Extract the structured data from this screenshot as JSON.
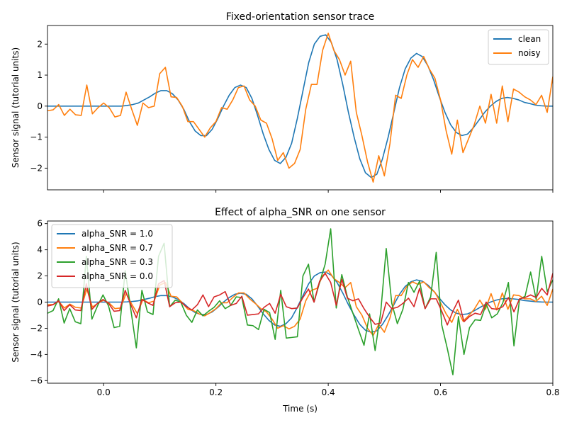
{
  "chart_data": [
    {
      "type": "line",
      "title": "Fixed-orientation sensor trace",
      "xlabel": "",
      "ylabel": "Sensor signal (tutorial units)",
      "xlim": [
        -0.1,
        0.8
      ],
      "ylim": [
        -2.7,
        2.6
      ],
      "xticks": [
        0.0,
        0.2,
        0.4,
        0.6,
        0.8
      ],
      "xticklabels": [
        "",
        "",
        "",
        "",
        ""
      ],
      "yticks": [
        -2,
        -1,
        0,
        1,
        2
      ],
      "yticklabels": [
        "−2",
        "−1",
        "0",
        "1",
        "2"
      ],
      "legend": "top-right",
      "grid": false,
      "series": [
        {
          "name": "clean",
          "color": "#1f77b4",
          "values": [
            0.0,
            0.0,
            0.0,
            0.0,
            0.0,
            0.0,
            0.0,
            0.0,
            0.0,
            0.0,
            0.0,
            0.0,
            0.0,
            0.0,
            0.02,
            0.05,
            0.1,
            0.2,
            0.3,
            0.42,
            0.5,
            0.5,
            0.4,
            0.2,
            -0.1,
            -0.5,
            -0.8,
            -0.95,
            -0.95,
            -0.75,
            -0.4,
            0.0,
            0.35,
            0.6,
            0.68,
            0.6,
            0.25,
            -0.3,
            -0.9,
            -1.4,
            -1.75,
            -1.85,
            -1.65,
            -1.2,
            -0.4,
            0.5,
            1.4,
            2.0,
            2.25,
            2.3,
            2.05,
            1.5,
            0.7,
            -0.2,
            -1.0,
            -1.7,
            -2.15,
            -2.3,
            -2.2,
            -1.7,
            -1.0,
            -0.2,
            0.6,
            1.2,
            1.55,
            1.7,
            1.6,
            1.3,
            0.85,
            0.3,
            -0.2,
            -0.6,
            -0.85,
            -0.95,
            -0.9,
            -0.7,
            -0.45,
            -0.2,
            0.0,
            0.15,
            0.25,
            0.28,
            0.25,
            0.2,
            0.12,
            0.08,
            0.03,
            0.01,
            0.0,
            0.0
          ]
        },
        {
          "name": "noisy",
          "color": "#ff7f0e",
          "values": [
            -0.15,
            -0.12,
            0.05,
            -0.3,
            -0.1,
            -0.28,
            -0.3,
            0.68,
            -0.25,
            -0.05,
            0.1,
            -0.05,
            -0.35,
            -0.3,
            0.45,
            -0.1,
            -0.62,
            0.1,
            -0.05,
            0.0,
            1.05,
            1.25,
            0.3,
            0.28,
            0.0,
            -0.5,
            -0.5,
            -0.75,
            -1.0,
            -0.7,
            -0.5,
            -0.05,
            -0.1,
            0.2,
            0.6,
            0.65,
            0.2,
            0.0,
            -0.45,
            -0.55,
            -1.05,
            -1.75,
            -1.5,
            -2.0,
            -1.85,
            -1.4,
            -0.1,
            0.7,
            0.7,
            1.8,
            2.35,
            1.8,
            1.5,
            1.0,
            1.45,
            -0.2,
            -0.95,
            -1.8,
            -2.45,
            -1.6,
            -2.25,
            -1.2,
            0.35,
            0.25,
            1.0,
            1.5,
            1.25,
            1.6,
            1.2,
            0.9,
            0.2,
            -0.8,
            -1.55,
            -0.45,
            -1.5,
            -1.05,
            -0.6,
            0.0,
            -0.55,
            0.38,
            -0.55,
            0.65,
            -0.5,
            0.55,
            0.45,
            0.3,
            0.2,
            0.05,
            0.35,
            -0.2,
            0.95
          ]
        }
      ]
    },
    {
      "type": "line",
      "title": "Effect of alpha_SNR on one sensor",
      "xlabel": "Time (s)",
      "ylabel": "Sensor signal (tutorial units)",
      "xlim": [
        -0.1,
        0.8
      ],
      "ylim": [
        -6.2,
        6.2
      ],
      "xticks": [
        0.0,
        0.2,
        0.4,
        0.6,
        0.8
      ],
      "xticklabels": [
        "0.0",
        "0.2",
        "0.4",
        "0.6",
        "0.8"
      ],
      "yticks": [
        -6,
        -4,
        -2,
        0,
        2,
        4,
        6
      ],
      "yticklabels": [
        "−6",
        "−4",
        "−2",
        "0",
        "2",
        "4",
        "6"
      ],
      "legend": "top-left",
      "grid": false,
      "series": [
        {
          "name": "alpha_SNR = 1.0",
          "color": "#1f77b4",
          "values": [
            0.0,
            0.0,
            0.0,
            0.0,
            0.0,
            0.0,
            0.0,
            0.0,
            0.0,
            0.0,
            0.0,
            0.0,
            0.0,
            0.0,
            0.02,
            0.05,
            0.1,
            0.2,
            0.3,
            0.42,
            0.5,
            0.5,
            0.4,
            0.2,
            -0.1,
            -0.5,
            -0.8,
            -0.95,
            -0.95,
            -0.75,
            -0.4,
            0.0,
            0.35,
            0.6,
            0.68,
            0.6,
            0.25,
            -0.3,
            -0.9,
            -1.4,
            -1.75,
            -1.85,
            -1.65,
            -1.2,
            -0.4,
            0.5,
            1.4,
            2.0,
            2.25,
            2.3,
            2.05,
            1.5,
            0.7,
            -0.2,
            -1.0,
            -1.7,
            -2.15,
            -2.3,
            -2.2,
            -1.7,
            -1.0,
            -0.2,
            0.6,
            1.2,
            1.55,
            1.7,
            1.6,
            1.3,
            0.85,
            0.3,
            -0.2,
            -0.6,
            -0.85,
            -0.95,
            -0.9,
            -0.7,
            -0.45,
            -0.2,
            0.0,
            0.15,
            0.25,
            0.28,
            0.25,
            0.2,
            0.12,
            0.08,
            0.03,
            0.01,
            0.0,
            0.0
          ]
        },
        {
          "name": "alpha_SNR = 0.7",
          "color": "#ff7f0e",
          "values": [
            -0.2,
            -0.18,
            0.05,
            -0.45,
            -0.15,
            -0.4,
            -0.45,
            1.0,
            -0.38,
            -0.08,
            0.15,
            -0.08,
            -0.5,
            -0.45,
            0.65,
            -0.15,
            -0.88,
            0.2,
            -0.05,
            0.08,
            1.3,
            1.5,
            0.45,
            0.4,
            -0.05,
            -0.55,
            -0.65,
            -0.9,
            -1.05,
            -0.8,
            -0.5,
            -0.05,
            -0.05,
            0.35,
            0.7,
            0.7,
            0.25,
            -0.1,
            -0.5,
            -0.75,
            -1.3,
            -2.0,
            -1.8,
            -2.05,
            -1.85,
            -1.3,
            0.1,
            0.9,
            1.05,
            2.0,
            2.45,
            1.8,
            1.5,
            1.1,
            1.5,
            -0.35,
            -1.0,
            -2.0,
            -2.55,
            -1.7,
            -2.3,
            -1.2,
            0.5,
            0.5,
            1.2,
            1.55,
            1.35,
            1.55,
            1.1,
            0.75,
            -0.05,
            -0.9,
            -1.55,
            -0.55,
            -1.45,
            -1.05,
            -0.55,
            0.15,
            -0.55,
            0.65,
            -0.6,
            0.7,
            -0.55,
            0.55,
            0.5,
            0.25,
            0.25,
            0.05,
            0.45,
            -0.25,
            1.0
          ]
        },
        {
          "name": "alpha_SNR = 0.3",
          "color": "#2ca02c",
          "values": [
            -0.85,
            -0.65,
            0.25,
            -1.6,
            -0.5,
            -1.5,
            -1.65,
            3.5,
            -1.3,
            -0.3,
            0.55,
            -0.3,
            -1.95,
            -1.85,
            2.4,
            -0.55,
            -3.5,
            0.9,
            -0.75,
            -0.95,
            3.5,
            4.5,
            -0.35,
            0.15,
            0.0,
            -1.0,
            -1.55,
            -0.6,
            -1.05,
            -0.7,
            -0.4,
            0.1,
            -0.5,
            -0.25,
            0.4,
            0.35,
            -1.75,
            -1.8,
            -2.1,
            -0.55,
            -0.8,
            -2.85,
            0.9,
            -2.75,
            -2.7,
            -2.65,
            2.0,
            2.9,
            0.0,
            1.5,
            2.9,
            5.6,
            -0.45,
            2.1,
            0.4,
            -0.85,
            -2.1,
            -3.3,
            -0.9,
            -3.7,
            -0.8,
            4.1,
            -0.1,
            -1.65,
            -0.55,
            1.5,
            0.75,
            1.6,
            -0.5,
            0.4,
            3.8,
            -1.75,
            -3.55,
            -5.55,
            -1.1,
            -4.0,
            -1.95,
            -1.35,
            -1.4,
            -0.15,
            -1.2,
            -0.9,
            -0.05,
            1.5,
            -3.35,
            0.2,
            0.45,
            2.3,
            0.2,
            3.5,
            0.8,
            1.7
          ]
        },
        {
          "name": "alpha_SNR = 0.0",
          "color": "#d62728",
          "values": [
            -0.3,
            -0.2,
            0.1,
            -0.65,
            -0.2,
            -0.6,
            -0.65,
            1.4,
            -0.55,
            -0.1,
            0.2,
            -0.1,
            -0.7,
            -0.65,
            0.9,
            -0.2,
            -1.2,
            0.2,
            -0.05,
            -0.25,
            1.4,
            1.65,
            -0.35,
            -0.05,
            0.0,
            -0.35,
            -0.6,
            -0.2,
            0.55,
            -0.35,
            0.4,
            0.55,
            0.8,
            -0.25,
            -0.1,
            0.45,
            -1.0,
            -0.95,
            -0.9,
            -0.4,
            -0.1,
            -0.85,
            0.6,
            -0.35,
            -0.5,
            -0.45,
            0.35,
            1.0,
            0.0,
            1.6,
            2.2,
            1.5,
            -0.25,
            1.75,
            0.3,
            0.1,
            0.25,
            -0.5,
            -1.15,
            -1.7,
            -1.6,
            0.0,
            -0.5,
            -0.4,
            -0.1,
            0.3,
            -0.35,
            1.05,
            -0.5,
            0.25,
            0.25,
            -0.7,
            -1.75,
            -0.7,
            0.15,
            -1.5,
            -1.1,
            -0.85,
            -0.95,
            0.0,
            -0.5,
            -0.55,
            -0.35,
            0.35,
            -0.75,
            0.25,
            0.35,
            0.55,
            0.35,
            1.05,
            0.55,
            2.2
          ]
        }
      ]
    }
  ]
}
